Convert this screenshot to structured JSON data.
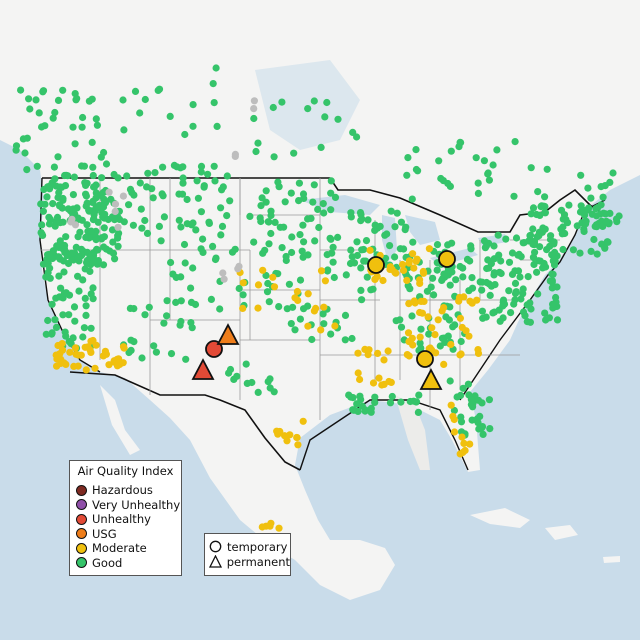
{
  "legend_aqi": {
    "title": "Air Quality Index",
    "items": [
      {
        "label": "Hazardous",
        "color": "#7e2a22"
      },
      {
        "label": "Very Unhealthy",
        "color": "#8f4fa8"
      },
      {
        "label": "Unhealthy",
        "color": "#e24a36"
      },
      {
        "label": "USG",
        "color": "#ee7d1a"
      },
      {
        "label": "Moderate",
        "color": "#f0c00e"
      },
      {
        "label": "Good",
        "color": "#35c46a"
      }
    ]
  },
  "legend_type": {
    "items": [
      {
        "label": "temporary",
        "shape": "circle"
      },
      {
        "label": "permanent",
        "shape": "triangle"
      }
    ]
  },
  "colors": {
    "ocean": "#c9dcea",
    "land": "#f4f4f3",
    "land_alt": "#ececea",
    "good": "#35c46a",
    "moderate": "#f0c00e",
    "usg": "#ee7d1a",
    "unhealthy": "#e24a36",
    "no_data": "#bdbdbd"
  }
}
